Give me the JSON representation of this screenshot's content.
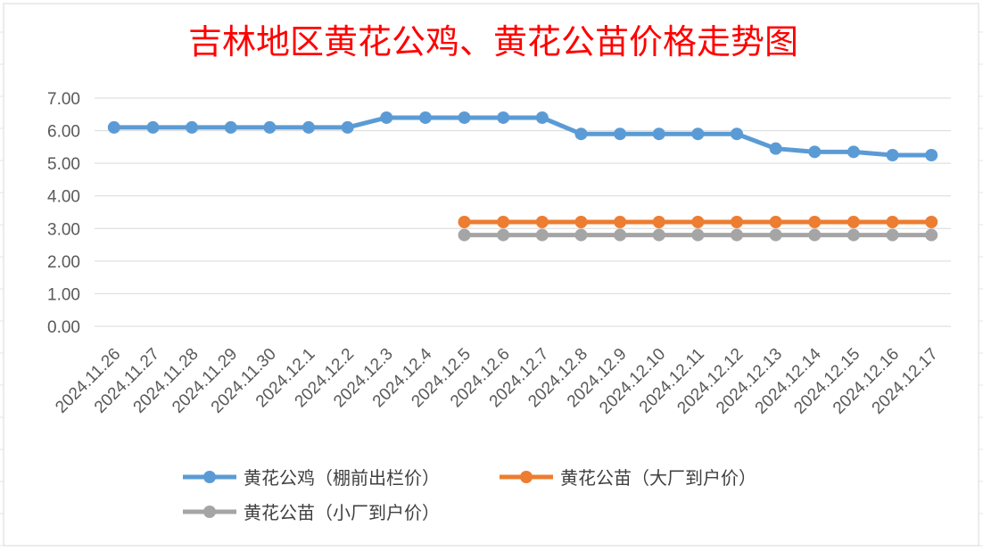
{
  "chart_data": {
    "type": "line",
    "title": "吉林地区黄花公鸡、黄花公苗价格走势图",
    "xlabel": "",
    "ylabel": "",
    "ylim": [
      0,
      7
    ],
    "yticks": [
      "0.00",
      "1.00",
      "2.00",
      "3.00",
      "4.00",
      "5.00",
      "6.00",
      "7.00"
    ],
    "grid": true,
    "legend_position": "bottom",
    "x": [
      "2024.11.26",
      "2024.11.27",
      "2024.11.28",
      "2024.11.29",
      "2024.11.30",
      "2024.12.1",
      "2024.12.2",
      "2024.12.3",
      "2024.12.4",
      "2024.12.5",
      "2024.12.6",
      "2024.12.7",
      "2024.12.8",
      "2024.12.9",
      "2024.12.10",
      "2024.12.11",
      "2024.12.12",
      "2024.12.13",
      "2024.12.14",
      "2024.12.15",
      "2024.12.16",
      "2024.12.17"
    ],
    "series": [
      {
        "name": "黄花公鸡（棚前出栏价）",
        "color": "#5b9bd5",
        "values": [
          6.1,
          6.1,
          6.1,
          6.1,
          6.1,
          6.1,
          6.1,
          6.4,
          6.4,
          6.4,
          6.4,
          6.4,
          5.9,
          5.9,
          5.9,
          5.9,
          5.9,
          5.45,
          5.35,
          5.35,
          5.25,
          5.25
        ]
      },
      {
        "name": "黄花公苗（大厂到户价）",
        "color": "#ed7d31",
        "values": [
          null,
          null,
          null,
          null,
          null,
          null,
          null,
          null,
          null,
          3.2,
          3.2,
          3.2,
          3.2,
          3.2,
          3.2,
          3.2,
          3.2,
          3.2,
          3.2,
          3.2,
          3.2,
          3.2
        ]
      },
      {
        "name": "黄花公苗（小厂到户价）",
        "color": "#a5a5a5",
        "values": [
          null,
          null,
          null,
          null,
          null,
          null,
          null,
          null,
          null,
          2.8,
          2.8,
          2.8,
          2.8,
          2.8,
          2.8,
          2.8,
          2.8,
          2.8,
          2.8,
          2.8,
          2.8,
          2.8
        ]
      }
    ]
  }
}
